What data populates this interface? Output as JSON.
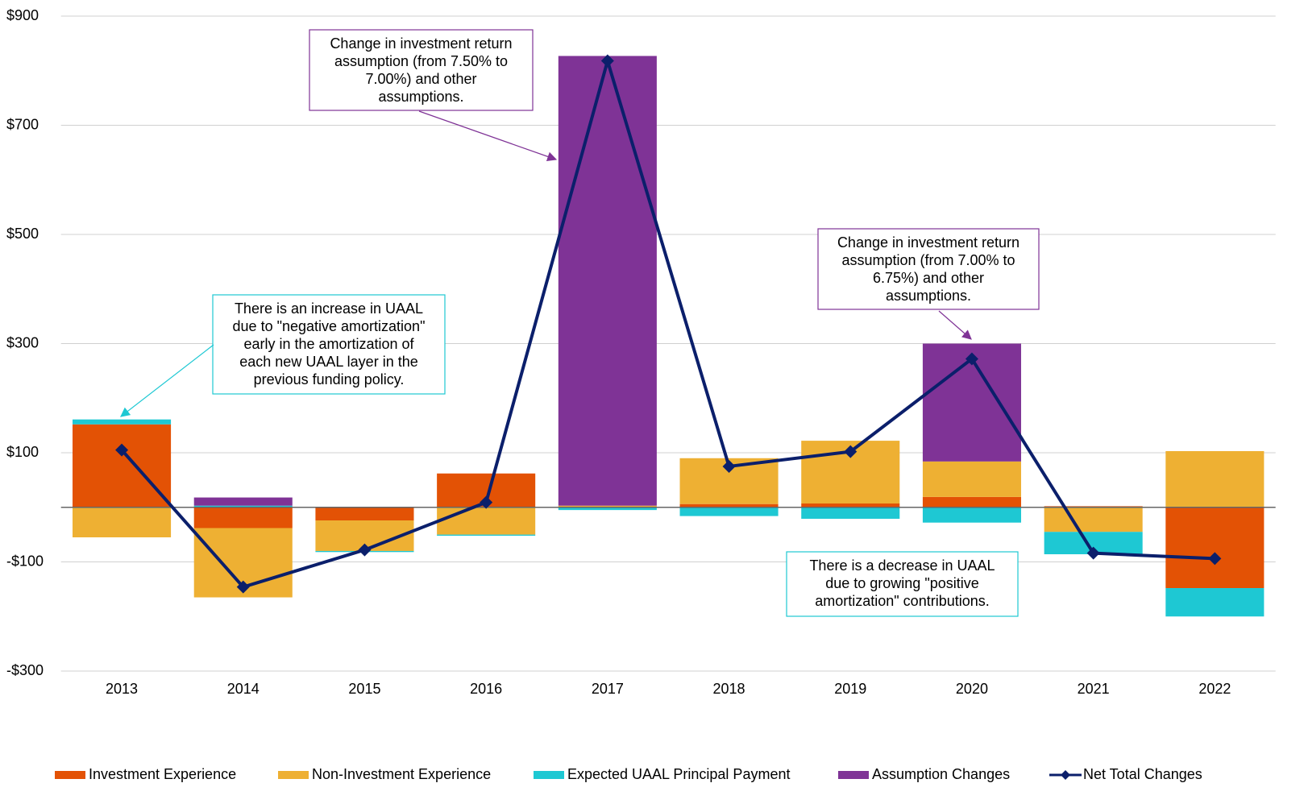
{
  "chart_data": {
    "type": "bar",
    "categories": [
      "2013",
      "2014",
      "2015",
      "2016",
      "2017",
      "2018",
      "2019",
      "2020",
      "2021",
      "2022"
    ],
    "series": [
      {
        "name": "Investment Experience",
        "color": "#e35205",
        "values": [
          152,
          -38,
          -24,
          62,
          0,
          6,
          7,
          19,
          2,
          -148
        ]
      },
      {
        "name": "Non-Investment Experience",
        "color": "#eeb033",
        "values": [
          -55,
          -127,
          -56,
          -50,
          3,
          84,
          115,
          65,
          -45,
          103
        ]
      },
      {
        "name": "Expected UAAL Principal Payment",
        "color": "#1ec8d3",
        "values": [
          9,
          3,
          -2,
          -2,
          -5,
          -16,
          -21,
          -28,
          -41,
          -52
        ]
      },
      {
        "name": "Assumption Changes",
        "color": "#7f3396",
        "values": [
          0,
          15,
          0,
          0,
          824,
          0,
          0,
          216,
          0,
          0
        ]
      },
      {
        "name": "Net Total Changes",
        "type": "line",
        "color": "#0b1f6b",
        "values": [
          105,
          -146,
          -78,
          9,
          818,
          75,
          102,
          272,
          -84,
          -94
        ]
      }
    ],
    "ylim": [
      -300,
      900
    ],
    "yticks": [
      {
        "value": -300,
        "label": "-$300"
      },
      {
        "value": -100,
        "label": "-$100"
      },
      {
        "value": 100,
        "label": "$100"
      },
      {
        "value": 300,
        "label": "$300"
      },
      {
        "value": 500,
        "label": "$500"
      },
      {
        "value": 700,
        "label": "$700"
      },
      {
        "value": 900,
        "label": "$900"
      }
    ],
    "grid": true,
    "legend": "bottom",
    "annotations": [
      {
        "color": "#1ec8d3",
        "lines": [
          "There is an increase in UAAL",
          "due to \"negative amortization\"",
          "early in the amortization of",
          "each new UAAL layer in the",
          "previous funding policy."
        ]
      },
      {
        "color": "#7f3396",
        "lines": [
          "Change in investment return",
          "assumption (from 7.50% to",
          "7.00%) and other",
          "assumptions."
        ]
      },
      {
        "color": "#7f3396",
        "lines": [
          "Change in investment return",
          "assumption (from 7.00% to",
          "6.75%) and other",
          "assumptions."
        ]
      },
      {
        "color": "#1ec8d3",
        "lines": [
          "There is a decrease in UAAL",
          "due to growing \"positive",
          "amortization\" contributions."
        ]
      }
    ]
  }
}
